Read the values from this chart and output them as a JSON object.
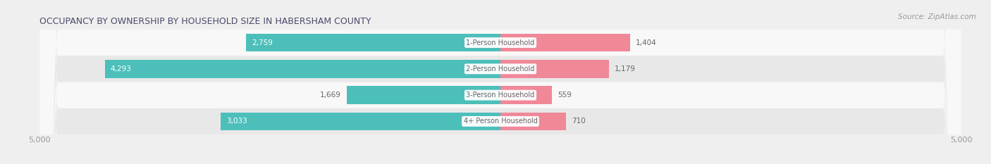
{
  "title": "OCCUPANCY BY OWNERSHIP BY HOUSEHOLD SIZE IN HABERSHAM COUNTY",
  "source": "Source: ZipAtlas.com",
  "categories": [
    "1-Person Household",
    "2-Person Household",
    "3-Person Household",
    "4+ Person Household"
  ],
  "owner_values": [
    2759,
    4293,
    1669,
    3033
  ],
  "renter_values": [
    1404,
    1179,
    559,
    710
  ],
  "max_scale": 5000,
  "owner_color": "#4DBFBA",
  "renter_color": "#F08898",
  "label_color_dark": "#666666",
  "label_color_light": "#ffffff",
  "bg_color": "#efefef",
  "row_bg_even": "#f8f8f8",
  "row_bg_odd": "#e8e8e8",
  "axis_label_color": "#999999",
  "title_color": "#4a4a6a",
  "source_color": "#999999"
}
